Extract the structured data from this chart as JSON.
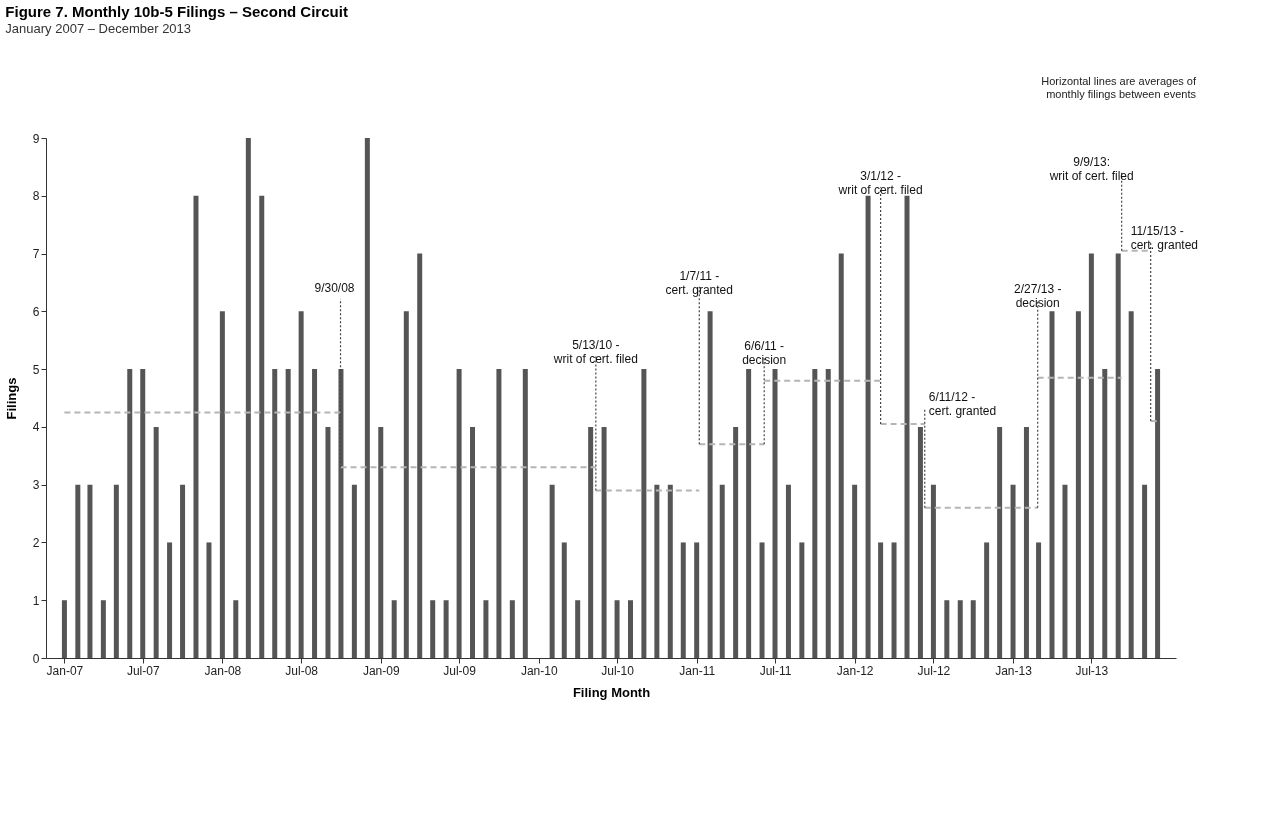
{
  "chart_data": {
    "type": "bar",
    "title": "Figure 7. Monthly 10b-5 Filings – Second Circuit",
    "subtitle": "January 2007 – December 2013",
    "xlabel": "Filing Month",
    "ylabel": "Filings",
    "x": [
      "2007-01",
      "2007-02",
      "2007-03",
      "2007-04",
      "2007-05",
      "2007-06",
      "2007-07",
      "2007-08",
      "2007-09",
      "2007-10",
      "2007-11",
      "2007-12",
      "2008-01",
      "2008-02",
      "2008-03",
      "2008-04",
      "2008-05",
      "2008-06",
      "2008-07",
      "2008-08",
      "2008-09",
      "2008-10",
      "2008-11",
      "2008-12",
      "2009-01",
      "2009-02",
      "2009-03",
      "2009-04",
      "2009-05",
      "2009-06",
      "2009-07",
      "2009-08",
      "2009-09",
      "2009-10",
      "2009-11",
      "2009-12",
      "2010-01",
      "2010-02",
      "2010-03",
      "2010-04",
      "2010-05",
      "2010-06",
      "2010-07",
      "2010-08",
      "2010-09",
      "2010-10",
      "2010-11",
      "2010-12",
      "2011-01",
      "2011-02",
      "2011-03",
      "2011-04",
      "2011-05",
      "2011-06",
      "2011-07",
      "2011-08",
      "2011-09",
      "2011-10",
      "2011-11",
      "2011-12",
      "2012-01",
      "2012-02",
      "2012-03",
      "2012-04",
      "2012-05",
      "2012-06",
      "2012-07",
      "2012-08",
      "2012-09",
      "2012-10",
      "2012-11",
      "2012-12",
      "2013-01",
      "2013-02",
      "2013-03",
      "2013-04",
      "2013-05",
      "2013-06",
      "2013-07",
      "2013-08",
      "2013-09",
      "2013-10",
      "2013-11",
      "2013-12"
    ],
    "series": [
      {
        "color": "#555555",
        "values": [
          1,
          3,
          3,
          1,
          3,
          5,
          5,
          4,
          2,
          3,
          8,
          2,
          6,
          1,
          9,
          8,
          5,
          5,
          6,
          5,
          4,
          5,
          3,
          9,
          4,
          1,
          6,
          7,
          1,
          1,
          5,
          4,
          1,
          5,
          1,
          5,
          0,
          3,
          2,
          1,
          4,
          4,
          1,
          1,
          5,
          3,
          3,
          2,
          2,
          6,
          3,
          4,
          5,
          2,
          5,
          3,
          2,
          5,
          5,
          7,
          3,
          8,
          2,
          2,
          8,
          4,
          3,
          1,
          1,
          1,
          2,
          4,
          3,
          4,
          2,
          6,
          3,
          6,
          7,
          5,
          7,
          6,
          3,
          5
        ]
      },
      {
        "type": "line",
        "color": "#b5b5b5",
        "line_style": "dashed",
        "x": [
          "2007-01",
          "2008-09-30"
        ],
        "values": [
          4.25,
          4.25
        ]
      },
      {
        "type": "line",
        "color": "#b5b5b5",
        "line_style": "dashed",
        "x": [
          "2008-09-30",
          "2010-05-13"
        ],
        "values": [
          3.3,
          3.3
        ]
      },
      {
        "type": "line",
        "color": "#b5b5b5",
        "line_style": "dashed",
        "x": [
          "2010-05-13",
          "2011-01-07"
        ],
        "values": [
          2.9,
          2.9
        ]
      },
      {
        "type": "line",
        "color": "#b5b5b5",
        "line_style": "dashed",
        "x": [
          "2011-01-07",
          "2011-06-06"
        ],
        "values": [
          3.7,
          3.7
        ]
      },
      {
        "type": "line",
        "color": "#b5b5b5",
        "line_style": "dashed",
        "x": [
          "2011-06-06",
          "2012-03-01"
        ],
        "values": [
          4.8,
          4.8
        ]
      },
      {
        "type": "line",
        "color": "#b5b5b5",
        "line_style": "dashed",
        "x": [
          "2012-03-01",
          "2012-06-11"
        ],
        "values": [
          4.05,
          4.05
        ]
      },
      {
        "type": "line",
        "color": "#b5b5b5",
        "line_style": "dashed",
        "x": [
          "2012-06-11",
          "2013-02-27"
        ],
        "values": [
          2.6,
          2.6
        ]
      },
      {
        "type": "line",
        "color": "#b5b5b5",
        "line_style": "dashed",
        "x": [
          "2013-02-27",
          "2013-09-09"
        ],
        "values": [
          4.85,
          4.85
        ]
      },
      {
        "type": "line",
        "color": "#b5b5b5",
        "line_style": "dashed",
        "x": [
          "2013-09-09",
          "2013-11-15"
        ],
        "values": [
          7.05,
          7.05
        ]
      },
      {
        "type": "line",
        "color": "#b5b5b5",
        "line_style": "dashed",
        "x": [
          "2013-11-15",
          "2013-12"
        ],
        "values": [
          4.1,
          4.1
        ]
      }
    ],
    "xlim": [
      "2006-12-01",
      "2014-01-01"
    ],
    "xticks": [
      {
        "value": "2007-01",
        "label": "Jan-07"
      },
      {
        "value": "2007-07",
        "label": "Jul-07"
      },
      {
        "value": "2008-01",
        "label": "Jan-08"
      },
      {
        "value": "2008-07",
        "label": "Jul-08"
      },
      {
        "value": "2009-01",
        "label": "Jan-09"
      },
      {
        "value": "2009-07",
        "label": "Jul-09"
      },
      {
        "value": "2010-01",
        "label": "Jan-10"
      },
      {
        "value": "2010-07",
        "label": "Jul-10"
      },
      {
        "value": "2011-01",
        "label": "Jan-11"
      },
      {
        "value": "2011-07",
        "label": "Jul-11"
      },
      {
        "value": "2012-01",
        "label": "Jan-12"
      },
      {
        "value": "2012-07",
        "label": "Jul-12"
      },
      {
        "value": "2013-01",
        "label": "Jan-13"
      },
      {
        "value": "2013-07",
        "label": "Jul-13"
      }
    ],
    "ylim": [
      0,
      9
    ],
    "yticks": [
      0,
      1,
      2,
      3,
      4,
      5,
      6,
      7,
      8,
      9
    ],
    "annotations": [
      "Horizontal lines are averages of\nmonthly filings between events",
      {
        "text": "9/30/08",
        "x": "2008-09-30",
        "y": 3.3
      },
      {
        "text": "5/13/10 -\nwrit of cert. filed",
        "x": "2010-05-13",
        "y": 2.9
      },
      {
        "text": "1/7/11 -\ncert. granted",
        "x": "2011-01-07",
        "y": 3.7
      },
      {
        "text": "6/6/11 -\ndecision",
        "x": "2011-06-06",
        "y": 3.7
      },
      {
        "text": "3/1/12 -\nwrit of cert. filed",
        "x": "2012-03-01",
        "y": 4.05
      },
      {
        "text": "6/11/12 -\ncert. granted",
        "x": "2012-06-11",
        "y": 2.6
      },
      {
        "text": "2/27/13 -\ndecision",
        "x": "2013-02-27",
        "y": 2.6
      },
      {
        "text": "9/9/13:\nwrit of cert. filed",
        "x": "2013-09-09",
        "y": 7.05
      },
      {
        "text": "11/15/13 -\ncert. granted",
        "x": "2013-11-15",
        "y": 4.1
      }
    ]
  }
}
